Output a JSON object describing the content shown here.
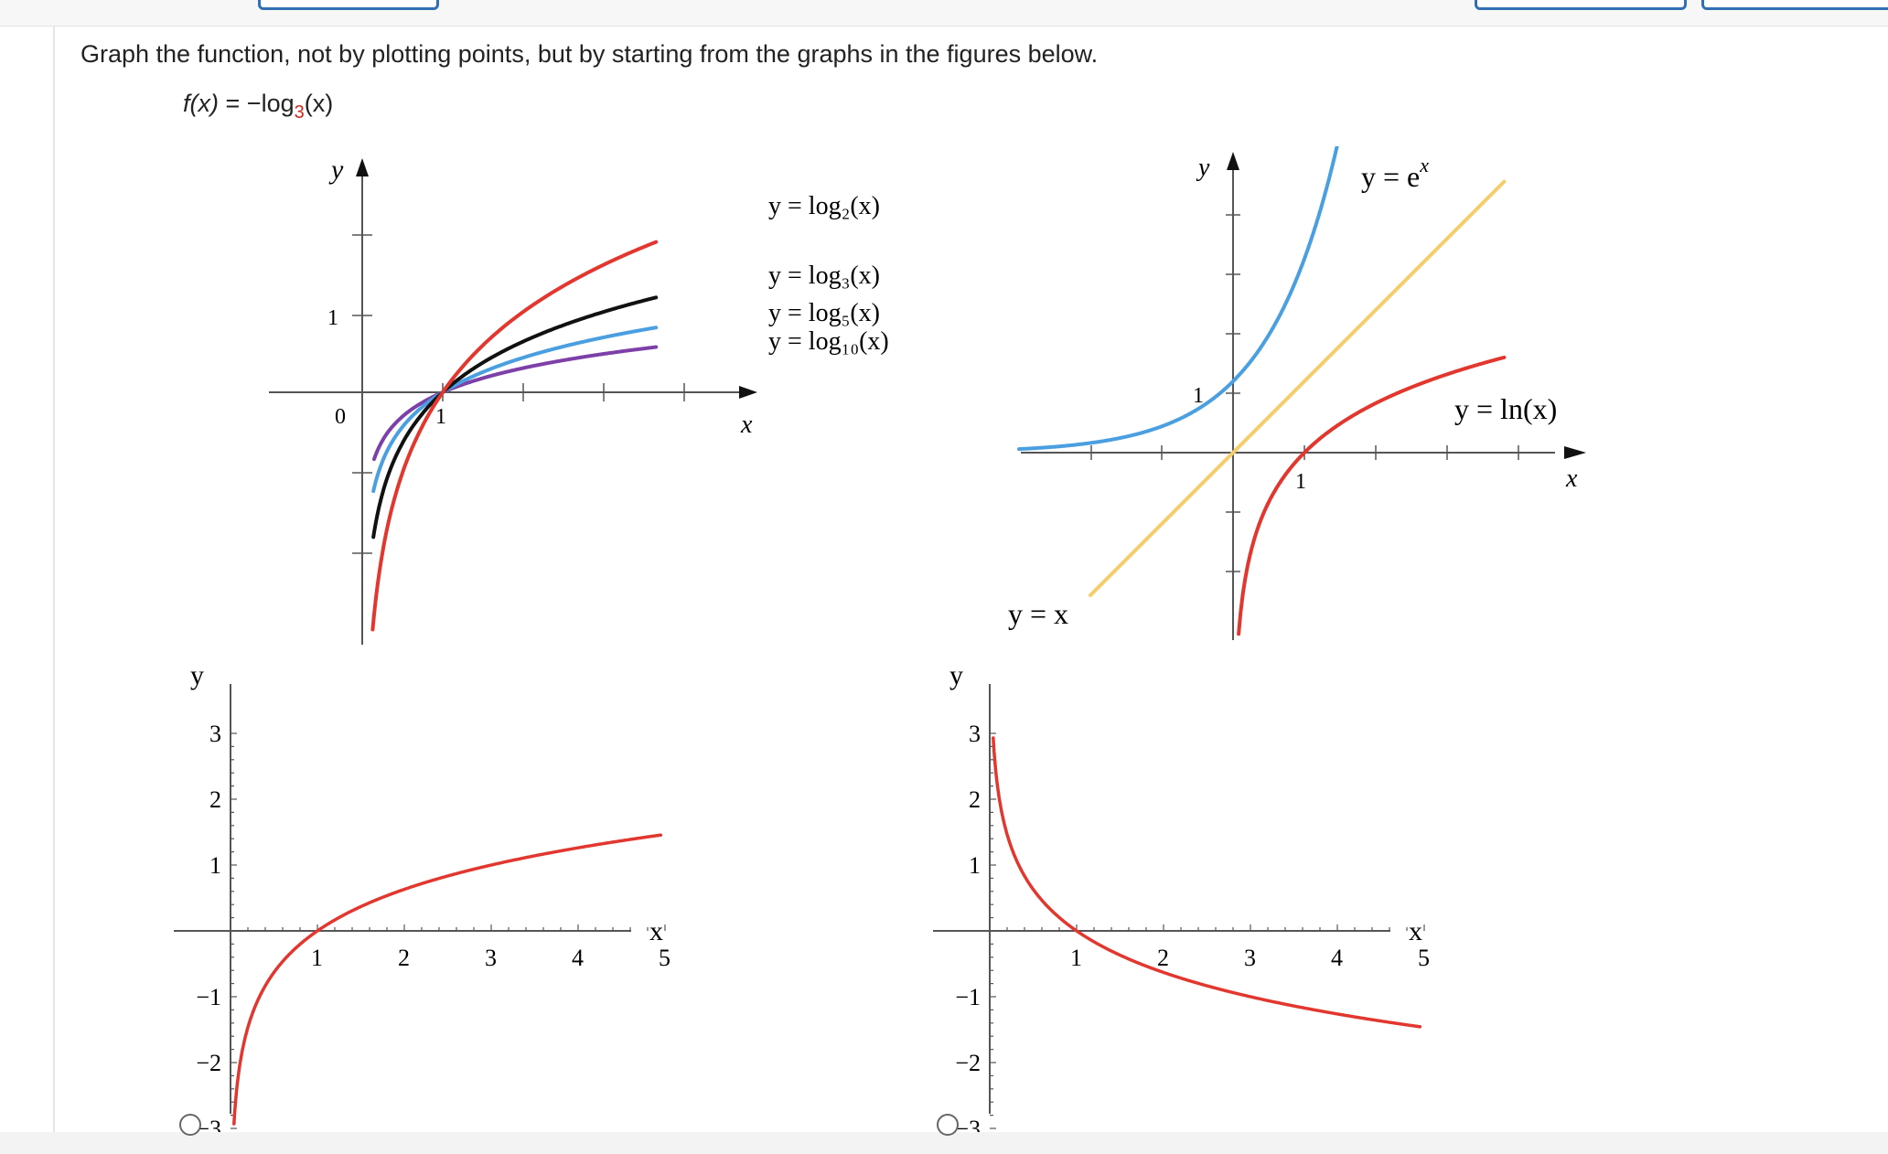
{
  "prompt": "Graph the function, not by plotting points, but by starting from the graphs in the figures below.",
  "function": {
    "name": "f(x)",
    "equals": "=",
    "minus": "−",
    "log": "log",
    "base": "3",
    "arg": "(x)"
  },
  "colors": {
    "red": "#e2372f",
    "black": "#111111",
    "blue": "#4a9fe0",
    "purple": "#7d3fa8",
    "gold": "#f5cd6a",
    "button_border": "#2f6fb2"
  },
  "figure_logs": {
    "y_label": "y",
    "x_label": "x",
    "tick_y1": "1",
    "tick_origin": "0",
    "tick_x1": "1",
    "labels": {
      "log2": "y = log₂(x)",
      "log3": "y = log₃(x)",
      "log5": "y = log₅(x)",
      "log10": "y = log₁₀(x)"
    }
  },
  "figure_exp": {
    "y_label": "y",
    "x_label": "x",
    "tick_y1": "1",
    "tick_x1": "1",
    "labels": {
      "exp": "y = e",
      "exp_power": "x",
      "ln": "y = ln(x)",
      "identity": "y = x"
    }
  },
  "chart_data": [
    {
      "type": "line",
      "title": "",
      "xlabel": "x",
      "ylabel": "y",
      "series": [
        {
          "name": "y = log2(x)",
          "function": "log2(x)",
          "color": "#e2372f"
        },
        {
          "name": "y = log3(x)",
          "function": "log3(x)",
          "color": "#111111"
        },
        {
          "name": "y = log5(x)",
          "function": "log5(x)",
          "color": "#4a9fe0"
        },
        {
          "name": "y = log10(x)",
          "function": "log10(x)",
          "color": "#7d3fa8"
        }
      ],
      "xlim": [
        -1.2,
        5
      ],
      "ylim": [
        -3,
        2.3
      ],
      "x_tick_labels": [
        "1"
      ],
      "y_tick_labels": [
        "0",
        "1"
      ]
    },
    {
      "type": "line",
      "title": "",
      "xlabel": "x",
      "ylabel": "y",
      "series": [
        {
          "name": "y = e^x",
          "function": "exp(x)",
          "color": "#4a9fe0"
        },
        {
          "name": "y = ln(x)",
          "function": "ln(x)",
          "color": "#e2372f"
        },
        {
          "name": "y = x",
          "function": "x",
          "color": "#f5cd6a"
        }
      ],
      "xlim": [
        -3,
        5
      ],
      "ylim": [
        -3,
        5
      ],
      "x_tick_labels": [
        "1"
      ],
      "y_tick_labels": [
        "1"
      ]
    },
    {
      "type": "line",
      "title": "",
      "xlabel": "x",
      "ylabel": "y",
      "series": [
        {
          "name": "",
          "function": "log3(x)",
          "color": "#e2372f",
          "points": [
            [
              0.05,
              -2.73
            ],
            [
              0.1,
              -2.1
            ],
            [
              0.2,
              -1.46
            ],
            [
              0.5,
              -0.63
            ],
            [
              1,
              0
            ],
            [
              2,
              0.63
            ],
            [
              3,
              1.0
            ],
            [
              4,
              1.26
            ],
            [
              5,
              1.46
            ]
          ]
        }
      ],
      "xlim": [
        -0.2,
        5.2
      ],
      "ylim": [
        -3,
        3
      ],
      "x_tick_labels": [
        "1",
        "2",
        "3",
        "4",
        "5"
      ],
      "y_tick_labels": [
        "3",
        "2",
        "1",
        "−1",
        "−2",
        "−3"
      ]
    },
    {
      "type": "line",
      "title": "",
      "xlabel": "x",
      "ylabel": "y",
      "series": [
        {
          "name": "",
          "function": "-log3(x)",
          "color": "#e2372f",
          "points": [
            [
              0.05,
              2.73
            ],
            [
              0.1,
              2.1
            ],
            [
              0.2,
              1.46
            ],
            [
              0.5,
              0.63
            ],
            [
              1,
              0
            ],
            [
              2,
              -0.63
            ],
            [
              3,
              -1.0
            ],
            [
              4,
              -1.26
            ],
            [
              5,
              -1.46
            ]
          ]
        }
      ],
      "xlim": [
        -0.2,
        5.2
      ],
      "ylim": [
        -3,
        3
      ],
      "x_tick_labels": [
        "1",
        "2",
        "3",
        "4",
        "5"
      ],
      "y_tick_labels": [
        "3",
        "2",
        "1",
        "−1",
        "−2",
        "−3"
      ]
    }
  ],
  "answer_graphs": {
    "y_label": "y",
    "x_label": "x",
    "x_ticks": [
      "1",
      "2",
      "3",
      "4",
      "5"
    ],
    "y_ticks": [
      "3",
      "2",
      "1",
      "−1",
      "−2",
      "−3"
    ]
  }
}
